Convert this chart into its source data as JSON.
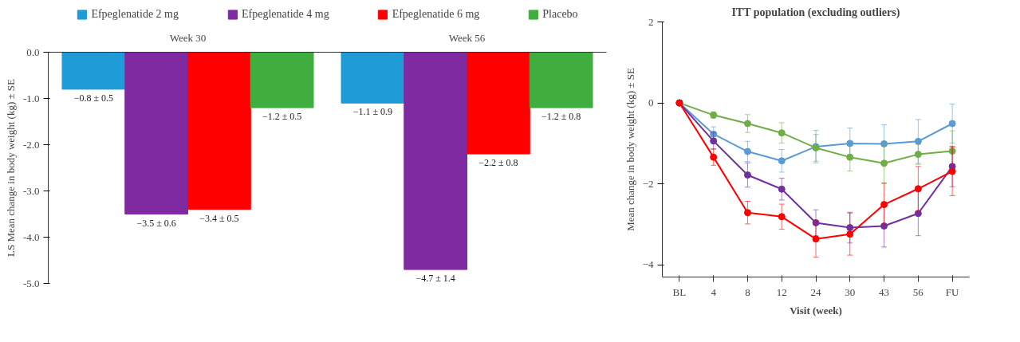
{
  "chart_data": [
    {
      "type": "bar",
      "ylabel": "LS Mean change in body weight (kg) ± SE",
      "categories": [
        "Week 30",
        "Week 56"
      ],
      "ylim": [
        -5,
        0
      ],
      "yticks": [
        {
          "value": 0,
          "label": "0.0"
        },
        {
          "value": -1,
          "label": "-1.0"
        },
        {
          "value": -2,
          "label": "-2.0"
        },
        {
          "value": -3,
          "label": "-3.0"
        },
        {
          "value": -4,
          "label": "-4.0"
        },
        {
          "value": -5,
          "label": "-5.0"
        }
      ],
      "legend": "top",
      "grid": false,
      "series": [
        {
          "name": "Efpeglenatide 2 mg",
          "color": "#1f9bd7",
          "values": [
            -0.8,
            -1.1
          ],
          "value_labels": [
            "−0.8 ± 0.5",
            "−1.1 ± 0.9"
          ]
        },
        {
          "name": "Efpeglenatide 4 mg",
          "color": "#7f2aa0",
          "values": [
            -3.5,
            -4.7
          ],
          "value_labels": [
            "−3.5 ± 0.6",
            "−4.7 ± 1.4"
          ]
        },
        {
          "name": "Efpeglenatide 6 mg",
          "color": "#ff0000",
          "values": [
            -3.4,
            -2.2
          ],
          "value_labels": [
            "−3.4 ± 0.5",
            "−2.2 ± 0.8"
          ]
        },
        {
          "name": "Placebo",
          "color": "#3fae3f",
          "values": [
            -1.2,
            -1.2
          ],
          "value_labels": [
            "−1.2 ± 0.5",
            "−1.2 ± 0.8"
          ]
        }
      ]
    },
    {
      "type": "line",
      "title": "ITT population (excluding outliers)",
      "xlabel": "Visit (week)",
      "ylabel": "Mean change in body weight (kg) ± SE",
      "categories": [
        "BL",
        "4",
        "8",
        "12",
        "24",
        "30",
        "43",
        "56",
        "FU"
      ],
      "ylim": [
        -4.3,
        2
      ],
      "yticks": [
        2,
        0,
        {
          "value": -2,
          "label": "−2"
        },
        {
          "value": -4,
          "label": "−4"
        }
      ],
      "grid": false,
      "legend": false,
      "marker": "circle",
      "line_style": "solid",
      "series": [
        {
          "color": "#5b9bd5",
          "values": [
            0,
            -0.77,
            -1.2,
            -1.43,
            -1.08,
            -1.0,
            -1.01,
            -0.95,
            -0.51
          ],
          "errors": [
            null,
            0.18,
            0.25,
            0.28,
            0.4,
            0.38,
            0.47,
            0.54,
            0.48
          ]
        },
        {
          "color": "#70ad47",
          "values": [
            0,
            -0.3,
            -0.51,
            -0.74,
            -1.11,
            -1.34,
            -1.49,
            -1.27,
            -1.19
          ],
          "errors": [
            null,
            0.08,
            0.22,
            0.25,
            0.33,
            0.34,
            0.5,
            0.25,
            0.5
          ]
        },
        {
          "color": "#7030a0",
          "values": [
            0,
            -0.94,
            -1.78,
            -2.13,
            -2.96,
            -3.08,
            -3.04,
            -2.73,
            -1.57
          ],
          "errors": [
            null,
            0.2,
            0.3,
            0.27,
            0.32,
            0.38,
            0.52,
            0.55,
            0.5
          ]
        },
        {
          "color": "#ff0000",
          "values": [
            0,
            -1.34,
            -2.71,
            -2.81,
            -3.36,
            -3.24,
            -2.51,
            -2.12,
            -1.69
          ],
          "errors": [
            null,
            0.2,
            0.28,
            0.31,
            0.45,
            0.52,
            0.53,
            0.55,
            0.6
          ]
        }
      ]
    }
  ]
}
